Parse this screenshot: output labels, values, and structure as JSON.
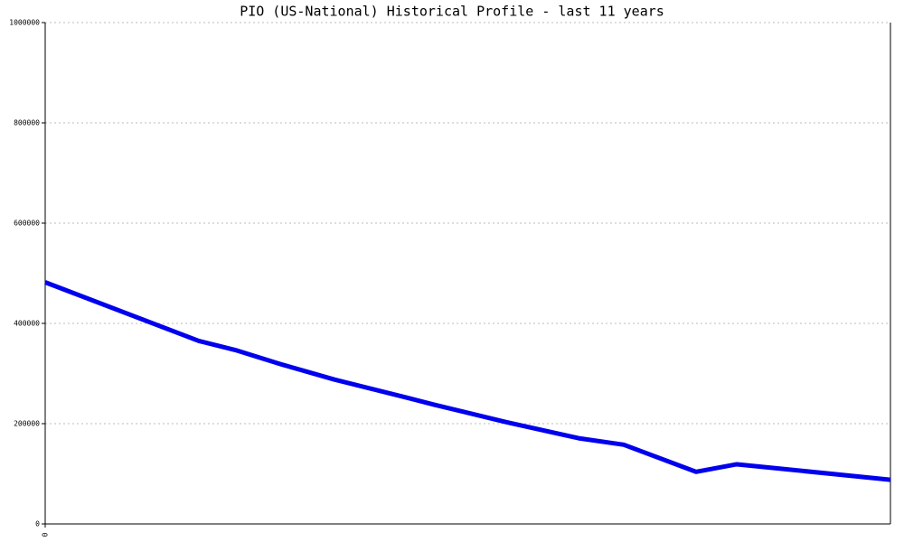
{
  "chart_data": {
    "type": "line",
    "title": "PIO (US-National) Historical Profile - last 11 years",
    "x": [
      0,
      170,
      210,
      260,
      320,
      400,
      430,
      510,
      590,
      640,
      720,
      765,
      935
    ],
    "series": [
      {
        "color": "#0000ee",
        "values": [
          482000,
          365000,
          347000,
          319000,
          288000,
          252000,
          238000,
          203000,
          171000,
          158000,
          104000,
          119000,
          88000
        ]
      }
    ],
    "xlim": [
      0,
      935
    ],
    "xticks": [
      0
    ],
    "ylim": [
      0,
      1000000
    ],
    "yticks": [
      0,
      200000,
      400000,
      600000,
      800000,
      1000000
    ],
    "grid": true
  }
}
